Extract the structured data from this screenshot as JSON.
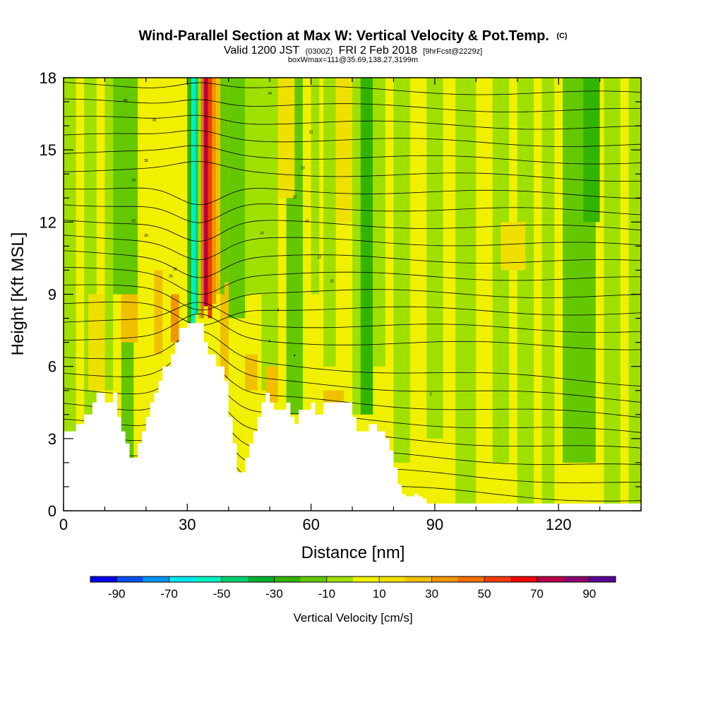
{
  "title": {
    "main": "Wind-Parallel Section at Max W: Vertical Velocity & Pot.Temp.",
    "copyright": "(C)",
    "valid_prefix": "Valid 1200 JST",
    "valid_utc": "(0300Z)",
    "valid_date": "FRI 2 Feb 2018",
    "forecast": "[9hrFcst@2229z]",
    "box_info": "boxWmax=111@35.69,138.27,3199m"
  },
  "chart_data": {
    "type": "heatmap",
    "xlabel": "Distance [nm]",
    "ylabel": "Height [Kft MSL]",
    "xlim": [
      0,
      140
    ],
    "ylim": [
      0,
      18
    ],
    "x_ticks": [
      0,
      30,
      60,
      90,
      120
    ],
    "y_ticks": [
      0,
      3,
      6,
      9,
      12,
      15,
      18
    ],
    "colorbar": {
      "label": "Vertical Velocity [cm/s]",
      "labels": [
        "-90",
        "-70",
        "-50",
        "-30",
        "-10",
        "10",
        "30",
        "50",
        "70",
        "90"
      ],
      "colors": [
        "#0000f0",
        "#0a50f0",
        "#0096f0",
        "#00e6f0",
        "#00f0c0",
        "#00d070",
        "#00b030",
        "#32b400",
        "#64c800",
        "#a0e000",
        "#f0f000",
        "#f0e000",
        "#f0c000",
        "#f09600",
        "#f06e00",
        "#f03c00",
        "#f00000",
        "#b40046",
        "#8c006e",
        "#5a0096"
      ]
    },
    "updrafts": [
      {
        "x": 35,
        "bottom_kft": 7.8,
        "top_kft": 18,
        "value_cm_s": 70
      },
      {
        "x": 38,
        "bottom_kft": 8.5,
        "top_kft": 17,
        "value_cm_s": 30
      },
      {
        "x": 22,
        "bottom_kft": 6.5,
        "top_kft": 10,
        "value_cm_s": 20
      }
    ],
    "downdrafts": [
      {
        "x": 31.5,
        "bottom_kft": 7.8,
        "top_kft": 18,
        "value_cm_s": -60
      },
      {
        "x": 73,
        "bottom_kft": 4,
        "top_kft": 18,
        "value_cm_s": -25
      },
      {
        "x": 15,
        "bottom_kft": 2.2,
        "top_kft": 18,
        "value_cm_s": -20
      },
      {
        "x": 125,
        "bottom_kft": 2,
        "top_kft": 18,
        "value_cm_s": -20
      }
    ],
    "terrain_profile": [
      [
        0,
        3.3
      ],
      [
        3,
        3.3
      ],
      [
        3,
        3.6
      ],
      [
        5,
        3.6
      ],
      [
        5,
        4
      ],
      [
        7,
        4
      ],
      [
        7,
        4.5
      ],
      [
        8,
        4.5
      ],
      [
        8,
        4.9
      ],
      [
        10,
        4.9
      ],
      [
        10,
        4.5
      ],
      [
        12,
        4.5
      ],
      [
        12,
        4.9
      ],
      [
        13,
        4.9
      ],
      [
        13,
        4.5
      ],
      [
        13,
        3.9
      ],
      [
        14,
        3.9
      ],
      [
        14,
        3.3
      ],
      [
        15,
        3.3
      ],
      [
        15,
        2.8
      ],
      [
        16,
        2.8
      ],
      [
        16,
        2.2
      ],
      [
        18,
        2.2
      ],
      [
        18,
        2.8
      ],
      [
        19,
        2.8
      ],
      [
        19,
        3.3
      ],
      [
        20,
        3.3
      ],
      [
        20,
        3.9
      ],
      [
        21,
        3.9
      ],
      [
        21,
        4.5
      ],
      [
        22,
        4.5
      ],
      [
        22,
        4.9
      ],
      [
        23,
        4.9
      ],
      [
        23,
        5.4
      ],
      [
        24,
        5.4
      ],
      [
        24,
        6.0
      ],
      [
        26,
        6.0
      ],
      [
        26,
        6.5
      ],
      [
        27,
        6.5
      ],
      [
        27,
        7.0
      ],
      [
        28,
        7.0
      ],
      [
        28,
        7.6
      ],
      [
        30,
        7.6
      ],
      [
        30,
        7.8
      ],
      [
        34,
        7.8
      ],
      [
        34,
        7.0
      ],
      [
        35,
        7.0
      ],
      [
        35,
        6.5
      ],
      [
        37,
        6.5
      ],
      [
        37,
        6.0
      ],
      [
        39,
        6.0
      ],
      [
        39,
        5.4
      ],
      [
        40,
        5.4
      ],
      [
        40,
        3.9
      ],
      [
        41,
        3.9
      ],
      [
        41,
        2.8
      ],
      [
        42,
        2.8
      ],
      [
        42,
        1.6
      ],
      [
        44,
        1.6
      ],
      [
        44,
        2.2
      ],
      [
        45,
        2.2
      ],
      [
        45,
        2.8
      ],
      [
        46,
        2.8
      ],
      [
        46,
        3.3
      ],
      [
        47,
        3.3
      ],
      [
        47,
        3.9
      ],
      [
        48,
        3.9
      ],
      [
        48,
        4.5
      ],
      [
        49,
        4.5
      ],
      [
        49,
        4.9
      ],
      [
        50,
        4.9
      ],
      [
        50,
        4.5
      ],
      [
        50.5,
        4.5
      ],
      [
        51,
        4.5
      ],
      [
        51,
        4.2
      ],
      [
        54,
        4.2
      ],
      [
        54,
        4.5
      ],
      [
        55,
        4.5
      ],
      [
        55,
        3.9
      ],
      [
        56,
        3.9
      ],
      [
        56,
        3.6
      ],
      [
        57,
        3.6
      ],
      [
        57,
        4.2
      ],
      [
        60,
        4.2
      ],
      [
        60,
        4.5
      ],
      [
        61,
        4.5
      ],
      [
        61,
        4.0
      ],
      [
        63,
        4.0
      ],
      [
        63,
        4.5
      ],
      [
        66,
        4.5
      ],
      [
        69,
        4.5
      ],
      [
        70,
        4.5
      ],
      [
        70,
        3.9
      ],
      [
        71,
        3.9
      ],
      [
        71,
        3.3
      ],
      [
        74,
        3.3
      ],
      [
        74,
        3.6
      ],
      [
        76,
        3.6
      ],
      [
        76,
        3.3
      ],
      [
        78,
        3.3
      ],
      [
        78,
        3.0
      ],
      [
        79,
        3.0
      ],
      [
        79,
        2.5
      ],
      [
        80,
        2.5
      ],
      [
        80,
        1.8
      ],
      [
        81,
        1.8
      ],
      [
        81,
        1.1
      ],
      [
        82,
        1.1
      ],
      [
        82,
        0.7
      ],
      [
        83,
        0.7
      ],
      [
        83,
        0.6
      ],
      [
        85,
        0.6
      ],
      [
        85,
        0.7
      ],
      [
        86,
        0.7
      ],
      [
        86,
        0.6
      ],
      [
        87,
        0.6
      ],
      [
        87,
        0.5
      ],
      [
        88,
        0.5
      ],
      [
        88,
        0.3
      ],
      [
        90,
        0.3
      ],
      [
        140,
        0.3
      ]
    ],
    "theta_contour_labels": [
      "40",
      "38",
      "36",
      "34",
      "32",
      "30",
      "28",
      "26",
      "24",
      "22",
      "20",
      "18",
      "16",
      "14",
      "12",
      "10",
      "8",
      "6",
      "4",
      "2"
    ]
  }
}
